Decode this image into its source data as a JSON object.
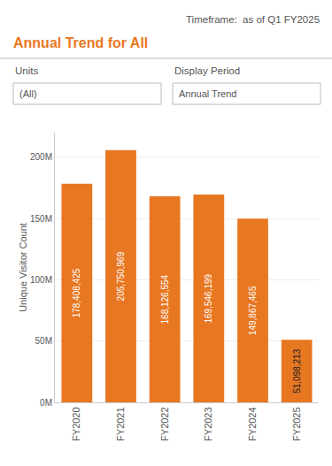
{
  "chart_data": {
    "type": "bar",
    "title": "Annual Trend for All",
    "annotations": [
      "Timeframe:  as of Q1 FY2025",
      "Units",
      "(All)",
      "Display Period",
      "Annual Trend"
    ],
    "categories": [
      "FY2020",
      "FY2021",
      "FY2022",
      "FY2023",
      "FY2024",
      "FY2025"
    ],
    "values": [
      178408425,
      205750969,
      168126554,
      169546199,
      149867465,
      51098213
    ],
    "value_labels": [
      "178,408,425",
      "205,750,969",
      "168,126,554",
      "169,546,199",
      "149,867,465",
      "51,098,213"
    ],
    "data_labels": true,
    "color": "#E87722",
    "ylabel": "Unique Visitor Count",
    "ylim": [
      0,
      220000000
    ],
    "yticks": [
      {
        "value": 0,
        "label": "0M"
      },
      {
        "value": 50000000,
        "label": "50M"
      },
      {
        "value": 100000000,
        "label": "100M"
      },
      {
        "value": 150000000,
        "label": "150M"
      },
      {
        "value": 200000000,
        "label": "200M"
      }
    ],
    "grid": true
  }
}
